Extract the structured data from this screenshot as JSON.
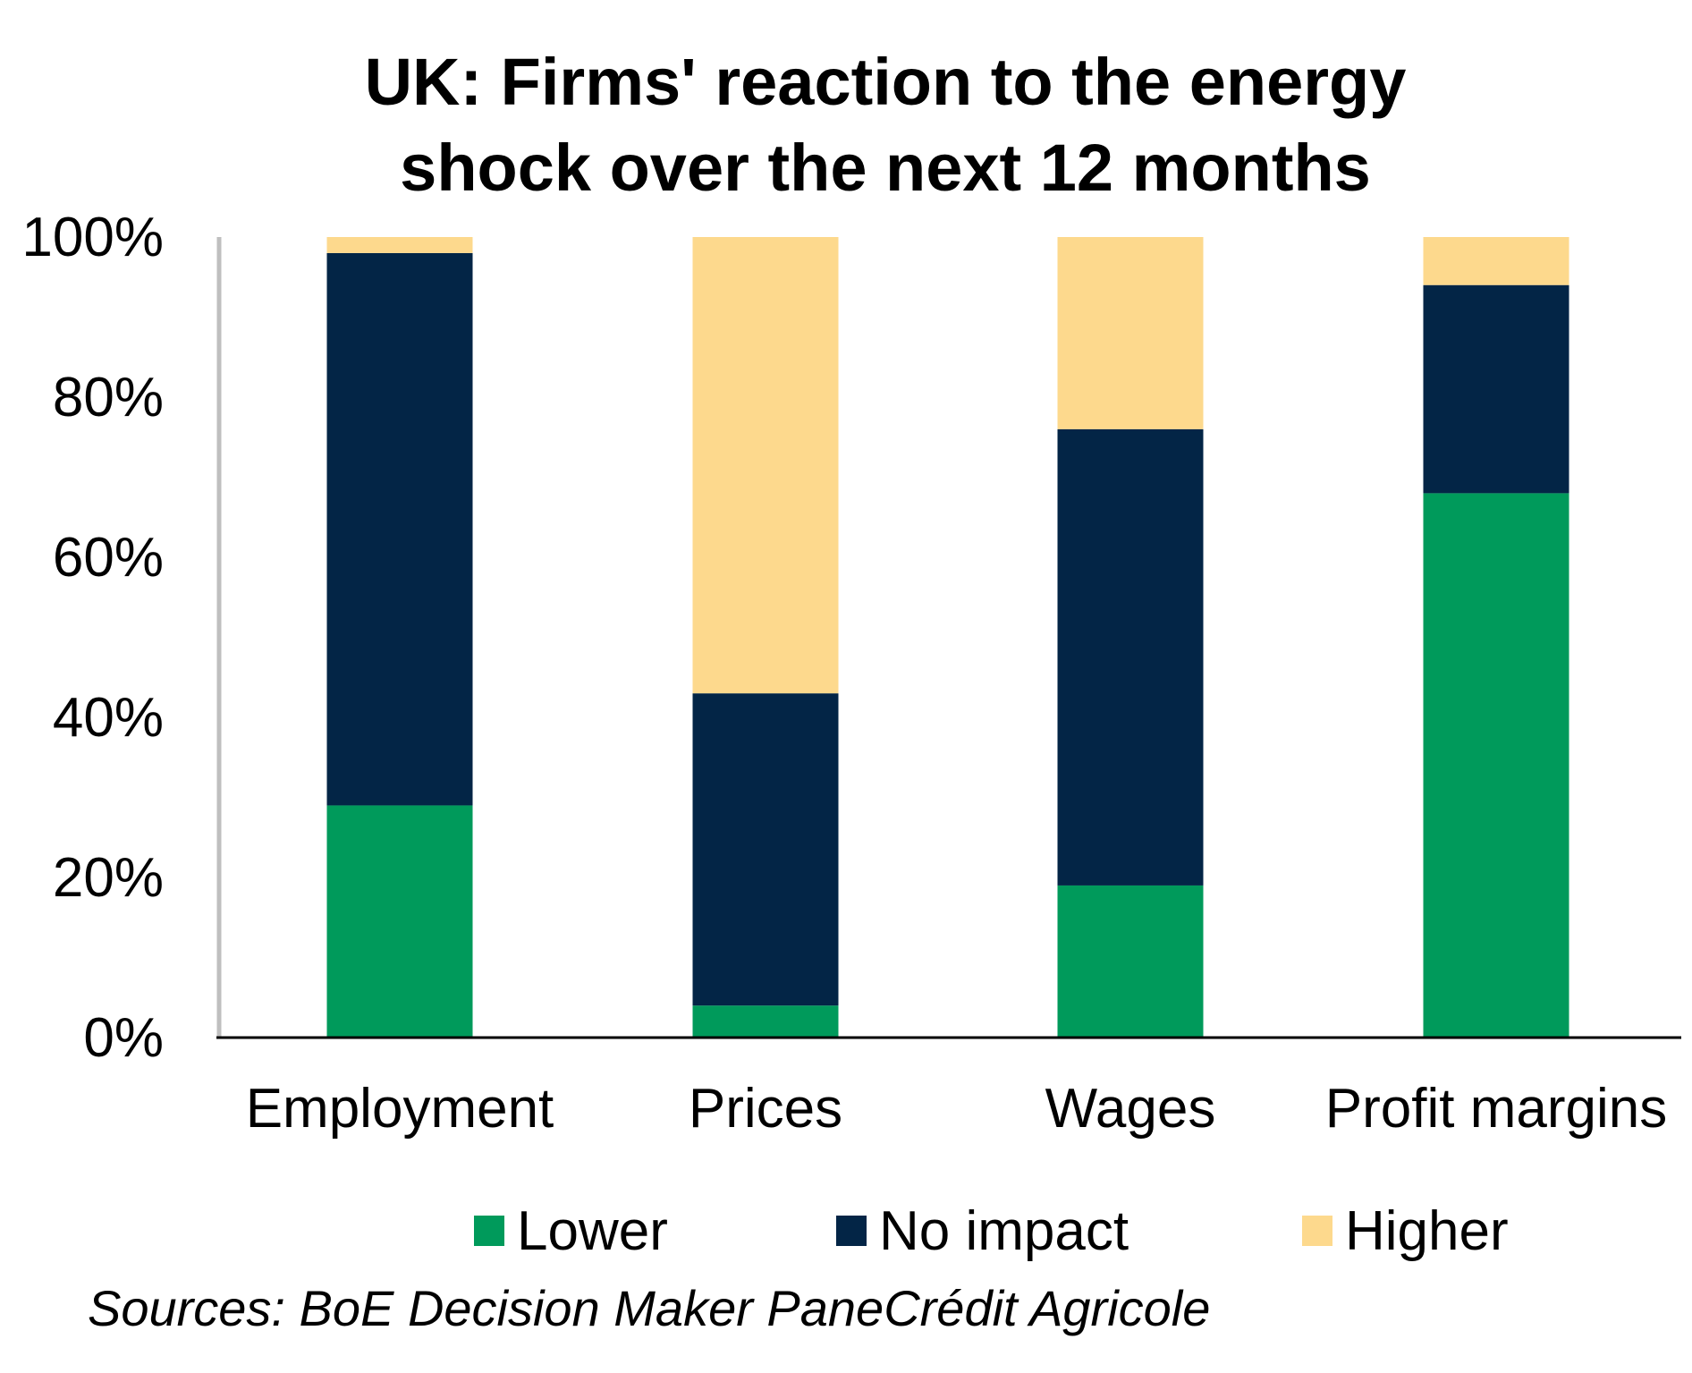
{
  "chart_data": {
    "type": "bar",
    "stacked": true,
    "title": "UK: Firms' reaction to the energy shock over the next 12 months",
    "title_lines": [
      "UK: Firms' reaction to the energy",
      "shock over the next 12 months"
    ],
    "categories": [
      "Employment",
      "Prices",
      "Wages",
      "Profit margins"
    ],
    "series": [
      {
        "name": "Lower",
        "color": "#009a5b",
        "values": [
          29,
          4,
          19,
          68
        ]
      },
      {
        "name": "No impact",
        "color": "#032546",
        "values": [
          69,
          39,
          57,
          26
        ]
      },
      {
        "name": "Higher",
        "color": "#fdd98d",
        "values": [
          2,
          57,
          24,
          6
        ]
      }
    ],
    "yticks": [
      "0%",
      "20%",
      "40%",
      "60%",
      "80%",
      "100%"
    ],
    "ylim": [
      0,
      100
    ],
    "grid": false,
    "legend_position": "bottom",
    "source": "Sources: BoE Decision Maker PaneCrédit Agricole"
  }
}
